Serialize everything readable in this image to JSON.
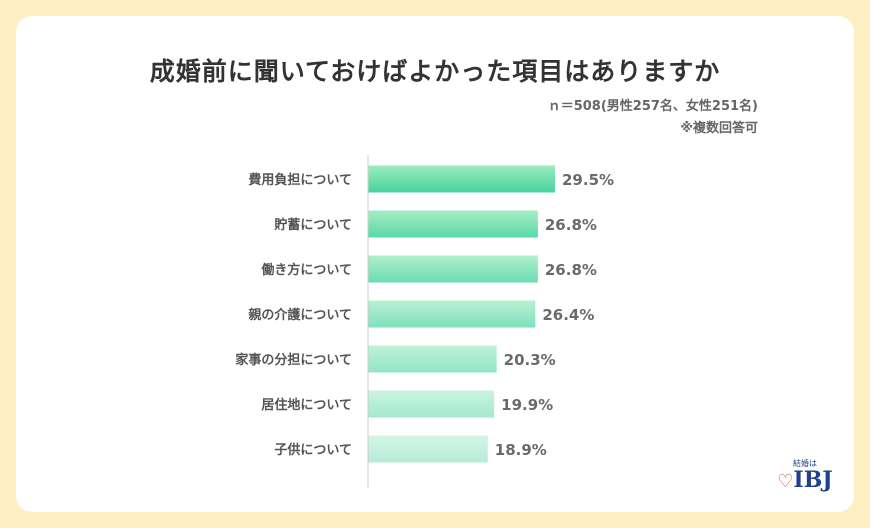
{
  "chart_data": {
    "type": "bar",
    "orientation": "horizontal",
    "title": "成婚前に聞いておけばよかった項目はありますか",
    "subtitle": "ｎ＝508(男性257名、女性251名)",
    "note": "※複数回答可",
    "categories": [
      "費用負担について",
      "貯蓄について",
      "働き方について",
      "親の介護について",
      "家事の分担について",
      "居住地について",
      "子供について"
    ],
    "values": [
      29.5,
      26.8,
      26.8,
      26.4,
      20.3,
      19.9,
      18.9
    ],
    "labels": [
      "29.5%",
      "26.8%",
      "26.8%",
      "26.4%",
      "20.3%",
      "19.9%",
      "18.9%"
    ],
    "xlim": [
      0,
      30
    ],
    "xlabel": "",
    "ylabel": "",
    "grid": false,
    "colors": {
      "dark_top": "#9eecbd",
      "dark_bottom": "#45d4a0",
      "light_top": "#d4f5e6",
      "light_bottom": "#b5ecd8"
    }
  },
  "logo": {
    "small": "結婚は",
    "main": "IBJ"
  }
}
